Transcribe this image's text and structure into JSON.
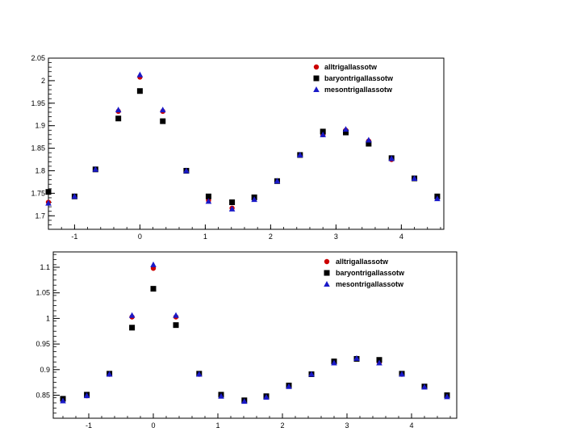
{
  "chart_data": [
    {
      "type": "scatter",
      "title": "",
      "xlabel": "",
      "ylabel": "",
      "xlim": [
        -1.4,
        4.65
      ],
      "ylim": [
        1.67,
        2.05
      ],
      "xticks": [
        -1,
        0,
        1,
        2,
        3,
        4
      ],
      "yticks": [
        1.7,
        1.75,
        1.8,
        1.85,
        1.9,
        1.95,
        2,
        2.05
      ],
      "legend_position": "top-right",
      "x": [
        -1.4,
        -1.0,
        -0.68,
        -0.33,
        0.0,
        0.35,
        0.71,
        1.05,
        1.41,
        1.75,
        2.1,
        2.45,
        2.8,
        3.15,
        3.5,
        3.85,
        4.2,
        4.55
      ],
      "series": [
        {
          "name": "alltrigallassotw",
          "color": "#cc0000",
          "marker": "circle",
          "values": [
            1.73,
            1.743,
            1.803,
            1.932,
            2.008,
            1.932,
            1.8,
            1.734,
            1.717,
            1.737,
            1.777,
            1.835,
            1.88,
            1.89,
            1.866,
            1.825,
            1.783,
            1.74
          ]
        },
        {
          "name": "baryontrigallassotw",
          "color": "#000000",
          "marker": "square",
          "values": [
            1.753,
            1.743,
            1.803,
            1.916,
            1.977,
            1.91,
            1.8,
            1.743,
            1.73,
            1.741,
            1.777,
            1.835,
            1.887,
            1.885,
            1.86,
            1.828,
            1.783,
            1.743
          ]
        },
        {
          "name": "mesontrigallassotw",
          "color": "#1a1ac8",
          "marker": "triangle",
          "values": [
            1.728,
            1.743,
            1.803,
            1.935,
            2.013,
            1.935,
            1.8,
            1.732,
            1.715,
            1.736,
            1.777,
            1.835,
            1.88,
            1.892,
            1.868,
            1.827,
            1.783,
            1.738
          ]
        }
      ]
    },
    {
      "type": "scatter",
      "title": "",
      "xlabel": "",
      "ylabel": "",
      "xlim": [
        -1.55,
        4.7
      ],
      "ylim": [
        0.805,
        1.13
      ],
      "xticks": [
        -1,
        0,
        1,
        2,
        3,
        4
      ],
      "yticks": [
        0.85,
        0.9,
        0.95,
        1,
        1.05,
        1.1
      ],
      "ytick_labels": [
        "0.85",
        "0.9",
        "0.95",
        "1",
        "1.05",
        "1.1"
      ],
      "legend_position": "top-right",
      "x": [
        -1.4,
        -1.03,
        -0.68,
        -0.33,
        0.0,
        0.35,
        0.71,
        1.05,
        1.41,
        1.75,
        2.1,
        2.45,
        2.8,
        3.15,
        3.5,
        3.85,
        4.2,
        4.55
      ],
      "series": [
        {
          "name": "alltrigallassotw",
          "color": "#cc0000",
          "marker": "circle",
          "values": [
            0.841,
            0.849,
            0.891,
            1.003,
            1.098,
            1.003,
            0.891,
            0.849,
            0.839,
            0.847,
            0.868,
            0.891,
            0.914,
            0.921,
            0.914,
            0.891,
            0.867,
            0.848
          ]
        },
        {
          "name": "baryontrigallassotw",
          "color": "#000000",
          "marker": "square",
          "values": [
            0.843,
            0.851,
            0.892,
            0.982,
            1.058,
            0.987,
            0.892,
            0.851,
            0.84,
            0.848,
            0.869,
            0.891,
            0.916,
            0.921,
            0.919,
            0.892,
            0.867,
            0.85
          ]
        },
        {
          "name": "mesontrigallassotw",
          "color": "#1a1ac8",
          "marker": "triangle",
          "values": [
            0.839,
            0.849,
            0.891,
            1.006,
            1.105,
            1.006,
            0.891,
            0.848,
            0.838,
            0.846,
            0.867,
            0.891,
            0.913,
            0.922,
            0.913,
            0.891,
            0.866,
            0.847
          ]
        }
      ]
    }
  ]
}
